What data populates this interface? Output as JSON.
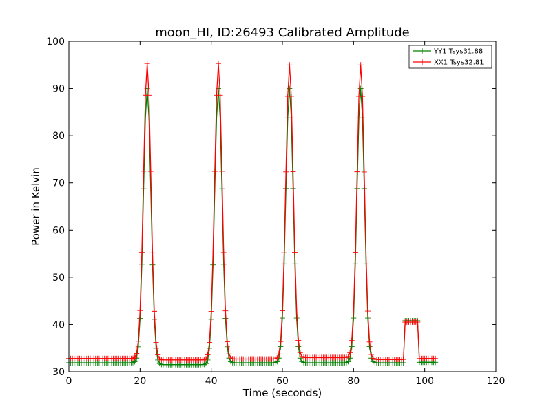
{
  "chart_data": {
    "type": "line",
    "title": "moon_HI, ID:26493 Calibrated Amplitude",
    "xlabel": "Time (seconds)",
    "ylabel": "Power in Kelvin",
    "xlim": [
      0,
      120
    ],
    "ylim": [
      30,
      100
    ],
    "xticks": [
      0,
      20,
      40,
      60,
      80,
      100,
      120
    ],
    "yticks": [
      30,
      40,
      50,
      60,
      70,
      80,
      90,
      100
    ],
    "grid": false,
    "legend_position": "top-right",
    "marker": "+",
    "sample_interval": 0.5,
    "x_range": [
      0,
      103
    ],
    "series": [
      {
        "name": "YY1 Tsys31.88",
        "color": "#008000",
        "baseline_segments": [
          {
            "x_start": 0,
            "x_end": 19,
            "y": 31.9
          },
          {
            "x_start": 25,
            "x_end": 39,
            "y": 31.5
          },
          {
            "x_start": 45,
            "x_end": 59,
            "y": 31.9
          },
          {
            "x_start": 65,
            "x_end": 79,
            "y": 31.9
          },
          {
            "x_start": 85,
            "x_end": 94.5,
            "y": 31.9
          },
          {
            "x_start": 94.5,
            "x_end": 98.5,
            "y": 40.8
          },
          {
            "x_start": 98.5,
            "x_end": 103,
            "y": 32.0
          }
        ],
        "peaks": [
          {
            "center": 22.0,
            "height": 90.0,
            "width": 1.05
          },
          {
            "center": 42.0,
            "height": 90.0,
            "width": 1.05
          },
          {
            "center": 62.0,
            "height": 90.0,
            "width": 1.05
          },
          {
            "center": 82.0,
            "height": 90.0,
            "width": 1.05
          }
        ]
      },
      {
        "name": "XX1 Tsys32.81",
        "color": "#ff0000",
        "baseline_segments": [
          {
            "x_start": 0,
            "x_end": 19,
            "y": 32.8
          },
          {
            "x_start": 25,
            "x_end": 39,
            "y": 32.5
          },
          {
            "x_start": 45,
            "x_end": 59,
            "y": 32.7
          },
          {
            "x_start": 65,
            "x_end": 79,
            "y": 33.0
          },
          {
            "x_start": 85,
            "x_end": 94.5,
            "y": 32.6
          },
          {
            "x_start": 94.5,
            "x_end": 98.5,
            "y": 40.5
          },
          {
            "x_start": 98.5,
            "x_end": 103,
            "y": 32.8
          }
        ],
        "peaks": [
          {
            "center": 22.0,
            "height": 95.3,
            "width": 1.05
          },
          {
            "center": 42.0,
            "height": 95.3,
            "width": 1.05
          },
          {
            "center": 62.0,
            "height": 95.0,
            "width": 1.05
          },
          {
            "center": 82.0,
            "height": 95.0,
            "width": 1.05
          }
        ]
      }
    ]
  }
}
